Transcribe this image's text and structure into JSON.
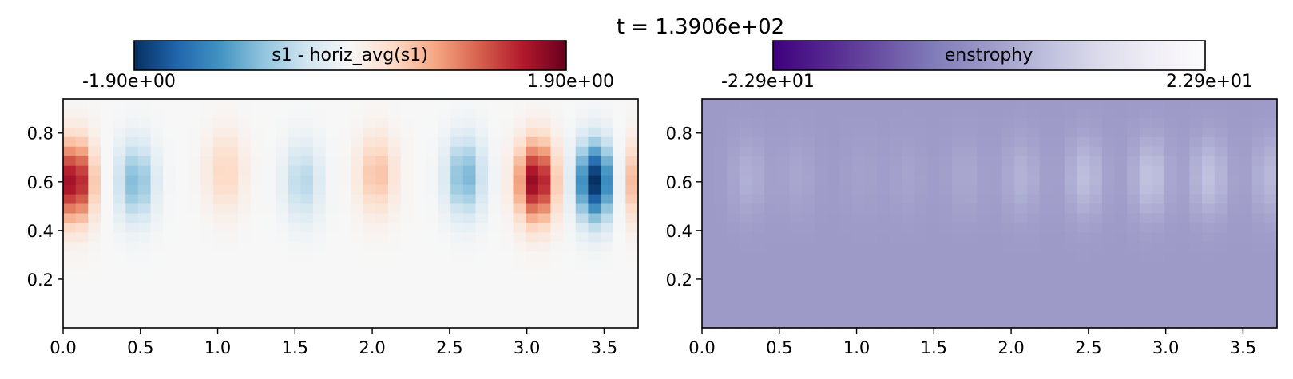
{
  "figure": {
    "title": "t = 1.3906e+02"
  },
  "chart_data": [
    {
      "type": "heatmap",
      "colorbar": {
        "label": "s1 - horiz_avg(s1)",
        "min_label": "-1.90e+00",
        "max_label": "1.90e+00",
        "range": [
          -1.9,
          1.9
        ],
        "colormap": "RdBu_r",
        "colors": [
          "#053061",
          "#2166ac",
          "#4393c3",
          "#92c5de",
          "#d1e5f0",
          "#f7f7f7",
          "#fddbc7",
          "#f4a582",
          "#d6604d",
          "#b2182b",
          "#67001f"
        ]
      },
      "xlim": [
        0,
        3.72
      ],
      "ylim": [
        0,
        0.94
      ],
      "x_ticks": [
        "0.0",
        "0.5",
        "1.0",
        "1.5",
        "2.0",
        "2.5",
        "3.0",
        "3.5"
      ],
      "y_ticks": [
        "0.2",
        "0.4",
        "0.6",
        "0.8"
      ],
      "structures": [
        {
          "x": 0.07,
          "y": 0.6,
          "value": 1.7
        },
        {
          "x": 0.47,
          "y": 0.6,
          "value": -0.85
        },
        {
          "x": 1.05,
          "y": 0.64,
          "value": 0.42
        },
        {
          "x": 1.55,
          "y": 0.6,
          "value": -0.55
        },
        {
          "x": 2.03,
          "y": 0.63,
          "value": 0.58
        },
        {
          "x": 2.6,
          "y": 0.62,
          "value": -0.9
        },
        {
          "x": 3.06,
          "y": 0.6,
          "value": 1.75
        },
        {
          "x": 3.44,
          "y": 0.6,
          "value": -1.9
        },
        {
          "x": 3.72,
          "y": 0.6,
          "value": 0.7
        }
      ]
    },
    {
      "type": "heatmap",
      "colorbar": {
        "label": "enstrophy",
        "min_label": "-2.29e+01",
        "max_label": "2.29e+01",
        "range": [
          -22.9,
          22.9
        ],
        "colormap": "Purples_r",
        "colors": [
          "#3f007d",
          "#54278f",
          "#6a51a3",
          "#807dba",
          "#9e9ac8",
          "#bcbddc",
          "#dadaeb",
          "#efedf5",
          "#fcfbfd"
        ]
      },
      "xlim": [
        0,
        3.72
      ],
      "ylim": [
        0,
        0.94
      ],
      "x_ticks": [
        "0.0",
        "0.5",
        "1.0",
        "1.5",
        "2.0",
        "2.5",
        "3.0",
        "3.5"
      ],
      "y_ticks": [
        "0.2",
        "0.4",
        "0.6",
        "0.8"
      ],
      "background_value": 0.0,
      "structures": [
        {
          "x": 0.3,
          "y": 0.62,
          "value": 3.5
        },
        {
          "x": 0.62,
          "y": 0.62,
          "value": 2.0
        },
        {
          "x": 1.03,
          "y": 0.62,
          "value": 1.2
        },
        {
          "x": 1.33,
          "y": 0.62,
          "value": 1.5
        },
        {
          "x": 1.7,
          "y": 0.62,
          "value": 2.2
        },
        {
          "x": 2.07,
          "y": 0.62,
          "value": 4.0
        },
        {
          "x": 2.48,
          "y": 0.62,
          "value": 6.0
        },
        {
          "x": 2.9,
          "y": 0.62,
          "value": 7.0
        },
        {
          "x": 3.28,
          "y": 0.62,
          "value": 6.5
        },
        {
          "x": 3.68,
          "y": 0.62,
          "value": 5.0
        }
      ]
    }
  ]
}
